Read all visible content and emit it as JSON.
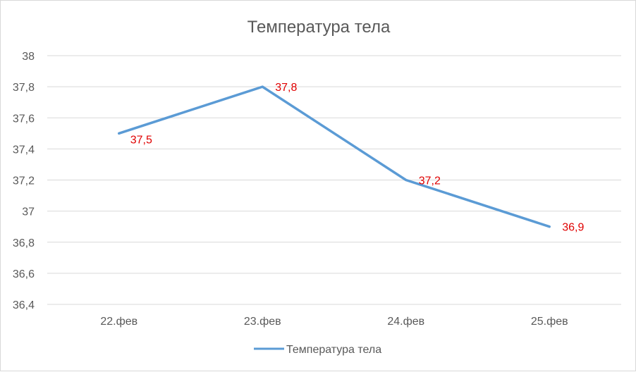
{
  "chart_data": {
    "type": "line",
    "title": "Температура тела",
    "categories": [
      "22.фев",
      "23.фев",
      "24.фев",
      "25.фев"
    ],
    "y_ticks": [
      "36,4",
      "36,6",
      "36,8",
      "37",
      "37,2",
      "37,4",
      "37,6",
      "37,8",
      "38"
    ],
    "ylim": [
      36.4,
      38
    ],
    "grid": true,
    "legend_position": "bottom",
    "series": [
      {
        "name": "Температура тела",
        "values": [
          37.5,
          37.8,
          37.2,
          36.9
        ],
        "value_labels": [
          "37,5",
          "37,8",
          "37,2",
          "36,9"
        ],
        "color": "#5b9bd5",
        "label_color": "#e00000"
      }
    ]
  }
}
